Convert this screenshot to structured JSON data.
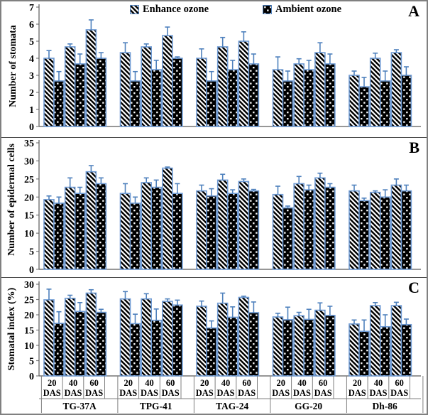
{
  "legend": {
    "items": [
      {
        "label": "Enhance ozone",
        "swatch": "diagonal-hatch-square"
      },
      {
        "label": "Ambient ozone",
        "swatch": "black-dotted-square"
      }
    ]
  },
  "colors": {
    "bar_border": "#6f9bd4",
    "error_bar": "#4f81bd",
    "axis_line": "#595959",
    "tick_and_table_line": "#7f7f7f",
    "hatch_foreground": "#000000",
    "dot_bar_background": "#000000",
    "figure_border": "#808080"
  },
  "groups": [
    "TG-37A",
    "TPG-41",
    "TAG-24",
    "GG-20",
    "Dh-86"
  ],
  "das_labels": [
    "20 DAS",
    "40 DAS",
    "60 DAS"
  ],
  "categories": [
    "TG-37A 20 DAS",
    "TG-37A 40 DAS",
    "TG-37A 60 DAS",
    "TPG-41 20 DAS",
    "TPG-41 40 DAS",
    "TPG-41 60 DAS",
    "TAG-24 20 DAS",
    "TAG-24 40 DAS",
    "TAG-24 60 DAS",
    "GG-20 20 DAS",
    "GG-20 40 DAS",
    "GG-20 60 DAS",
    "Dh-86 20 DAS",
    "Dh-86 40 DAS",
    "Dh-86 60 DAS"
  ],
  "chart_data": [
    {
      "panel_label": "A",
      "type": "bar",
      "title": "",
      "xlabel": "",
      "ylabel": "Number of stomata",
      "ylim": [
        0,
        7
      ],
      "ytick_step": 1,
      "grid": false,
      "legend_position": "top-center",
      "error_bars": "plus-direction",
      "series": [
        {
          "name": "Enhance ozone",
          "values": [
            4.0,
            4.67,
            5.67,
            4.33,
            4.67,
            5.33,
            4.0,
            4.67,
            5.0,
            3.33,
            3.67,
            4.33,
            3.0,
            4.0,
            4.33
          ],
          "errors_plus": [
            0.45,
            0.17,
            0.58,
            0.58,
            0.17,
            0.5,
            0.55,
            0.55,
            0.55,
            0.75,
            0.3,
            0.58,
            0.25,
            0.3,
            0.17
          ]
        },
        {
          "name": "Ambient ozone",
          "values": [
            2.67,
            3.67,
            4.0,
            2.67,
            3.33,
            4.0,
            2.67,
            3.33,
            3.67,
            2.67,
            3.33,
            3.67,
            2.33,
            2.67,
            3.0
          ],
          "errors_plus": [
            0.55,
            0.58,
            0.33,
            0.55,
            0.55,
            0.08,
            0.55,
            0.55,
            0.58,
            0.58,
            0.55,
            0.58,
            0.55,
            0.58,
            0.5
          ]
        }
      ]
    },
    {
      "panel_label": "B",
      "type": "bar",
      "title": "",
      "xlabel": "",
      "ylabel": "Number of epidermal cells",
      "ylim": [
        0,
        35
      ],
      "ytick_step": 5,
      "grid": false,
      "legend_position": "none",
      "error_bars": "plus-direction",
      "series": [
        {
          "name": "Enhance ozone",
          "values": [
            19.3,
            22.7,
            27.0,
            21.0,
            24.0,
            28.0,
            21.7,
            24.7,
            24.3,
            20.7,
            23.7,
            25.3,
            21.7,
            21.3,
            23.3
          ],
          "errors_plus": [
            1.0,
            2.6,
            1.7,
            2.7,
            1.3,
            0.3,
            1.6,
            1.6,
            0.7,
            2.3,
            2.0,
            1.3,
            1.6,
            0.4,
            1.7
          ]
        },
        {
          "name": "Ambient ozone",
          "values": [
            18.3,
            21.0,
            23.7,
            18.3,
            22.7,
            21.0,
            20.3,
            21.0,
            21.7,
            17.0,
            22.0,
            22.7,
            19.0,
            20.0,
            21.7
          ],
          "errors_plus": [
            1.7,
            1.7,
            1.6,
            1.7,
            2.0,
            2.7,
            2.0,
            1.0,
            0.4,
            0.5,
            1.3,
            1.0,
            0.7,
            2.0,
            1.6
          ]
        }
      ]
    },
    {
      "panel_label": "C",
      "type": "bar",
      "title": "",
      "xlabel": "",
      "ylabel": "Stomatal index (%)",
      "ylim": [
        0,
        30
      ],
      "ytick_step": 5,
      "grid": false,
      "legend_position": "none",
      "error_bars": "plus-direction",
      "series": [
        {
          "name": "Enhance ozone",
          "values": [
            24.9,
            25.4,
            27.1,
            25.2,
            25.2,
            24.4,
            22.8,
            23.8,
            25.7,
            19.3,
            19.7,
            21.5,
            17.0,
            23.0,
            23.0
          ],
          "errors_plus": [
            3.5,
            1.0,
            1.1,
            2.4,
            1.7,
            0.8,
            1.7,
            3.3,
            0.4,
            1.2,
            1.1,
            2.4,
            1.3,
            1.0,
            1.1
          ]
        },
        {
          "name": "Ambient ozone",
          "values": [
            17.2,
            21.1,
            20.8,
            17.1,
            18.2,
            23.2,
            15.7,
            19.2,
            20.7,
            18.4,
            18.5,
            19.8,
            14.6,
            16.1,
            16.8
          ],
          "errors_plus": [
            3.8,
            2.9,
            1.0,
            3.1,
            3.7,
            1.6,
            2.3,
            3.4,
            3.5,
            4.1,
            3.3,
            3.0,
            3.7,
            3.9,
            1.8
          ]
        }
      ]
    }
  ]
}
